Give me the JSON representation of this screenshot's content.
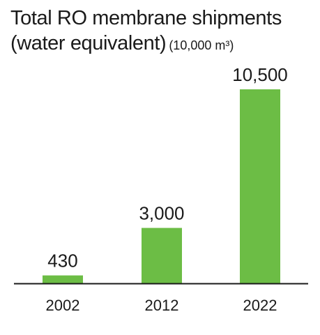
{
  "chart_data": {
    "type": "bar",
    "title": "Total RO membrane shipments (water equivalent)",
    "title_line1": "Total RO membrane shipments",
    "title_line2": "(water equivalent)",
    "unit": "(10,000 m³)",
    "categories": [
      "2002",
      "2012",
      "2022"
    ],
    "values": [
      430,
      3000,
      10500
    ],
    "data_labels": [
      "430",
      "3,000",
      "10,500"
    ],
    "xlabel": "",
    "ylabel": "",
    "ylim": [
      0,
      10500
    ],
    "grid": false,
    "legend": "none",
    "bar_color": "#6cbd45",
    "axis_color": "#1a1a1a"
  }
}
